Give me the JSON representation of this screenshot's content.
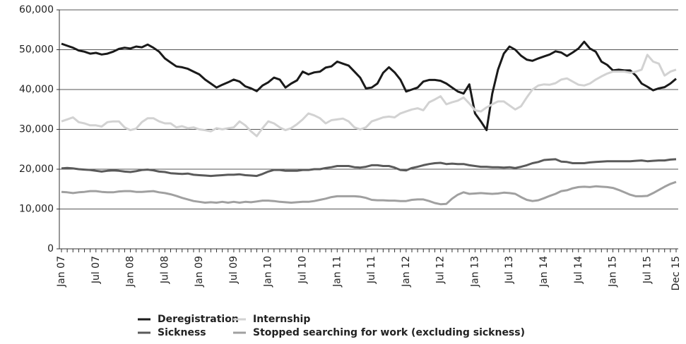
{
  "chart_data": {
    "type": "line",
    "categories": [
      "Jan 07",
      null,
      null,
      null,
      null,
      null,
      "Jul 07",
      null,
      null,
      null,
      null,
      null,
      "Jan 08",
      null,
      null,
      null,
      null,
      null,
      "Jul 08",
      null,
      null,
      null,
      null,
      null,
      "Jan 09",
      null,
      null,
      null,
      null,
      null,
      "Jul 09",
      null,
      null,
      null,
      null,
      null,
      "Jan 10",
      null,
      null,
      null,
      null,
      null,
      "Jul 10",
      null,
      null,
      null,
      null,
      null,
      "Jan 11",
      null,
      null,
      null,
      null,
      null,
      "Jul 11",
      null,
      null,
      null,
      null,
      null,
      "Jan 12",
      null,
      null,
      null,
      null,
      null,
      "Jul 12",
      null,
      null,
      null,
      null,
      null,
      "Jan 13",
      null,
      null,
      null,
      null,
      null,
      "Jul 13",
      null,
      null,
      null,
      null,
      null,
      "Jan 14",
      null,
      null,
      null,
      null,
      null,
      "Jul 14",
      null,
      null,
      null,
      null,
      null,
      "Jan 15",
      null,
      null,
      null,
      null,
      null,
      "Jul 15",
      null,
      null,
      null,
      null,
      "Dec 15"
    ],
    "series": [
      {
        "name": "Deregistration",
        "color": "#1a1a1a",
        "values": [
          51500,
          51000,
          50500,
          49800,
          49500,
          49000,
          49200,
          48800,
          49000,
          49500,
          50200,
          50500,
          50300,
          50800,
          50600,
          51300,
          50500,
          49500,
          47800,
          46800,
          45800,
          45600,
          45200,
          44500,
          43800,
          42500,
          41500,
          40500,
          41200,
          41800,
          42500,
          42000,
          40800,
          40300,
          39600,
          41000,
          41800,
          43000,
          42500,
          40500,
          41500,
          42300,
          44500,
          43800,
          44300,
          44500,
          45500,
          45800,
          47000,
          46500,
          46000,
          44500,
          43000,
          40300,
          40500,
          41500,
          44200,
          45600,
          44300,
          42500,
          39500,
          40000,
          40500,
          42000,
          42400,
          42400,
          42200,
          41500,
          40500,
          39500,
          39000,
          41300,
          34000,
          32000,
          29800,
          39000,
          45000,
          49000,
          50800,
          50000,
          48500,
          47500,
          47200,
          47800,
          48300,
          48800,
          49600,
          49300,
          48400,
          49300,
          50300,
          52000,
          50300,
          49500,
          47000,
          46200,
          44800,
          45000,
          44800,
          44800,
          43500,
          41500,
          40700,
          39800,
          40300,
          40600,
          41500,
          42700
        ]
      },
      {
        "name": "Internship",
        "color": "#d2d2d2",
        "values": [
          32000,
          32500,
          33000,
          31800,
          31500,
          31000,
          31000,
          30700,
          31800,
          32000,
          32000,
          30500,
          29800,
          30200,
          31800,
          32800,
          32800,
          32000,
          31500,
          31500,
          30500,
          30800,
          30300,
          30500,
          30000,
          29800,
          29500,
          30300,
          30000,
          30300,
          30500,
          32000,
          31000,
          29500,
          28300,
          30300,
          32000,
          31500,
          30500,
          29800,
          30300,
          31300,
          32500,
          34000,
          33500,
          32800,
          31500,
          32300,
          32500,
          32700,
          32000,
          30500,
          30000,
          30500,
          32000,
          32500,
          33000,
          33200,
          33000,
          34000,
          34500,
          35000,
          35300,
          34800,
          36800,
          37500,
          38300,
          36300,
          36800,
          37200,
          38000,
          36500,
          34800,
          34500,
          35500,
          36300,
          37000,
          37000,
          36000,
          35000,
          35800,
          38000,
          40000,
          41000,
          41300,
          41200,
          41600,
          42500,
          42800,
          42000,
          41200,
          41000,
          41500,
          42500,
          43300,
          44000,
          44500,
          44500,
          44500,
          44200,
          44500,
          45000,
          48700,
          47000,
          46500,
          43500,
          44500,
          45000
        ]
      },
      {
        "name": "Sickness",
        "color": "#5a5a5a",
        "values": [
          20200,
          20300,
          20200,
          20000,
          19900,
          19800,
          19600,
          19400,
          19600,
          19700,
          19600,
          19400,
          19300,
          19500,
          19800,
          19900,
          19700,
          19400,
          19300,
          19000,
          18900,
          18800,
          18900,
          18600,
          18500,
          18400,
          18300,
          18400,
          18500,
          18600,
          18600,
          18700,
          18500,
          18400,
          18300,
          18800,
          19400,
          19800,
          19800,
          19600,
          19600,
          19600,
          19800,
          19800,
          20000,
          20000,
          20300,
          20500,
          20800,
          20800,
          20800,
          20500,
          20400,
          20600,
          21000,
          21000,
          20800,
          20800,
          20400,
          19800,
          19700,
          20300,
          20600,
          21000,
          21300,
          21500,
          21600,
          21300,
          21400,
          21300,
          21300,
          21000,
          20800,
          20600,
          20600,
          20500,
          20500,
          20400,
          20500,
          20300,
          20600,
          21000,
          21500,
          21800,
          22300,
          22400,
          22500,
          21900,
          21800,
          21500,
          21500,
          21500,
          21700,
          21800,
          21900,
          22000,
          22000,
          22000,
          22000,
          22000,
          22100,
          22200,
          22000,
          22100,
          22200,
          22200,
          22400,
          22500
        ]
      },
      {
        "name": "Stopped searching for work (excluding sickness)",
        "color": "#a0a0a0",
        "values": [
          14300,
          14200,
          14000,
          14200,
          14300,
          14500,
          14500,
          14300,
          14200,
          14200,
          14400,
          14500,
          14500,
          14300,
          14300,
          14400,
          14500,
          14200,
          14000,
          13700,
          13300,
          12800,
          12400,
          12000,
          11800,
          11600,
          11700,
          11600,
          11800,
          11600,
          11800,
          11600,
          11800,
          11700,
          11900,
          12100,
          12100,
          12000,
          11800,
          11700,
          11600,
          11700,
          11800,
          11800,
          12000,
          12300,
          12600,
          13000,
          13200,
          13200,
          13200,
          13200,
          13100,
          12800,
          12300,
          12200,
          12200,
          12100,
          12100,
          12000,
          12000,
          12300,
          12400,
          12400,
          12000,
          11500,
          11200,
          11300,
          12600,
          13600,
          14200,
          13800,
          13900,
          14000,
          13900,
          13800,
          13900,
          14100,
          14000,
          13800,
          13000,
          12300,
          12000,
          12200,
          12700,
          13300,
          13800,
          14500,
          14700,
          15200,
          15500,
          15600,
          15500,
          15700,
          15600,
          15500,
          15300,
          14800,
          14200,
          13600,
          13200,
          13200,
          13300,
          14000,
          14800,
          15600,
          16300,
          16800
        ]
      }
    ],
    "ylim": [
      0,
      60000
    ],
    "yticks": [
      0,
      {
        "value": 10000,
        "label": "10,000"
      },
      {
        "value": 20000,
        "label": "20,000"
      },
      {
        "value": 30000,
        "label": "30,000"
      },
      {
        "value": 40000,
        "label": "40,000"
      },
      {
        "value": 50000,
        "label": "50,000"
      },
      {
        "value": 60000,
        "label": "60,000"
      }
    ],
    "grid": true,
    "legend": "bottom"
  }
}
